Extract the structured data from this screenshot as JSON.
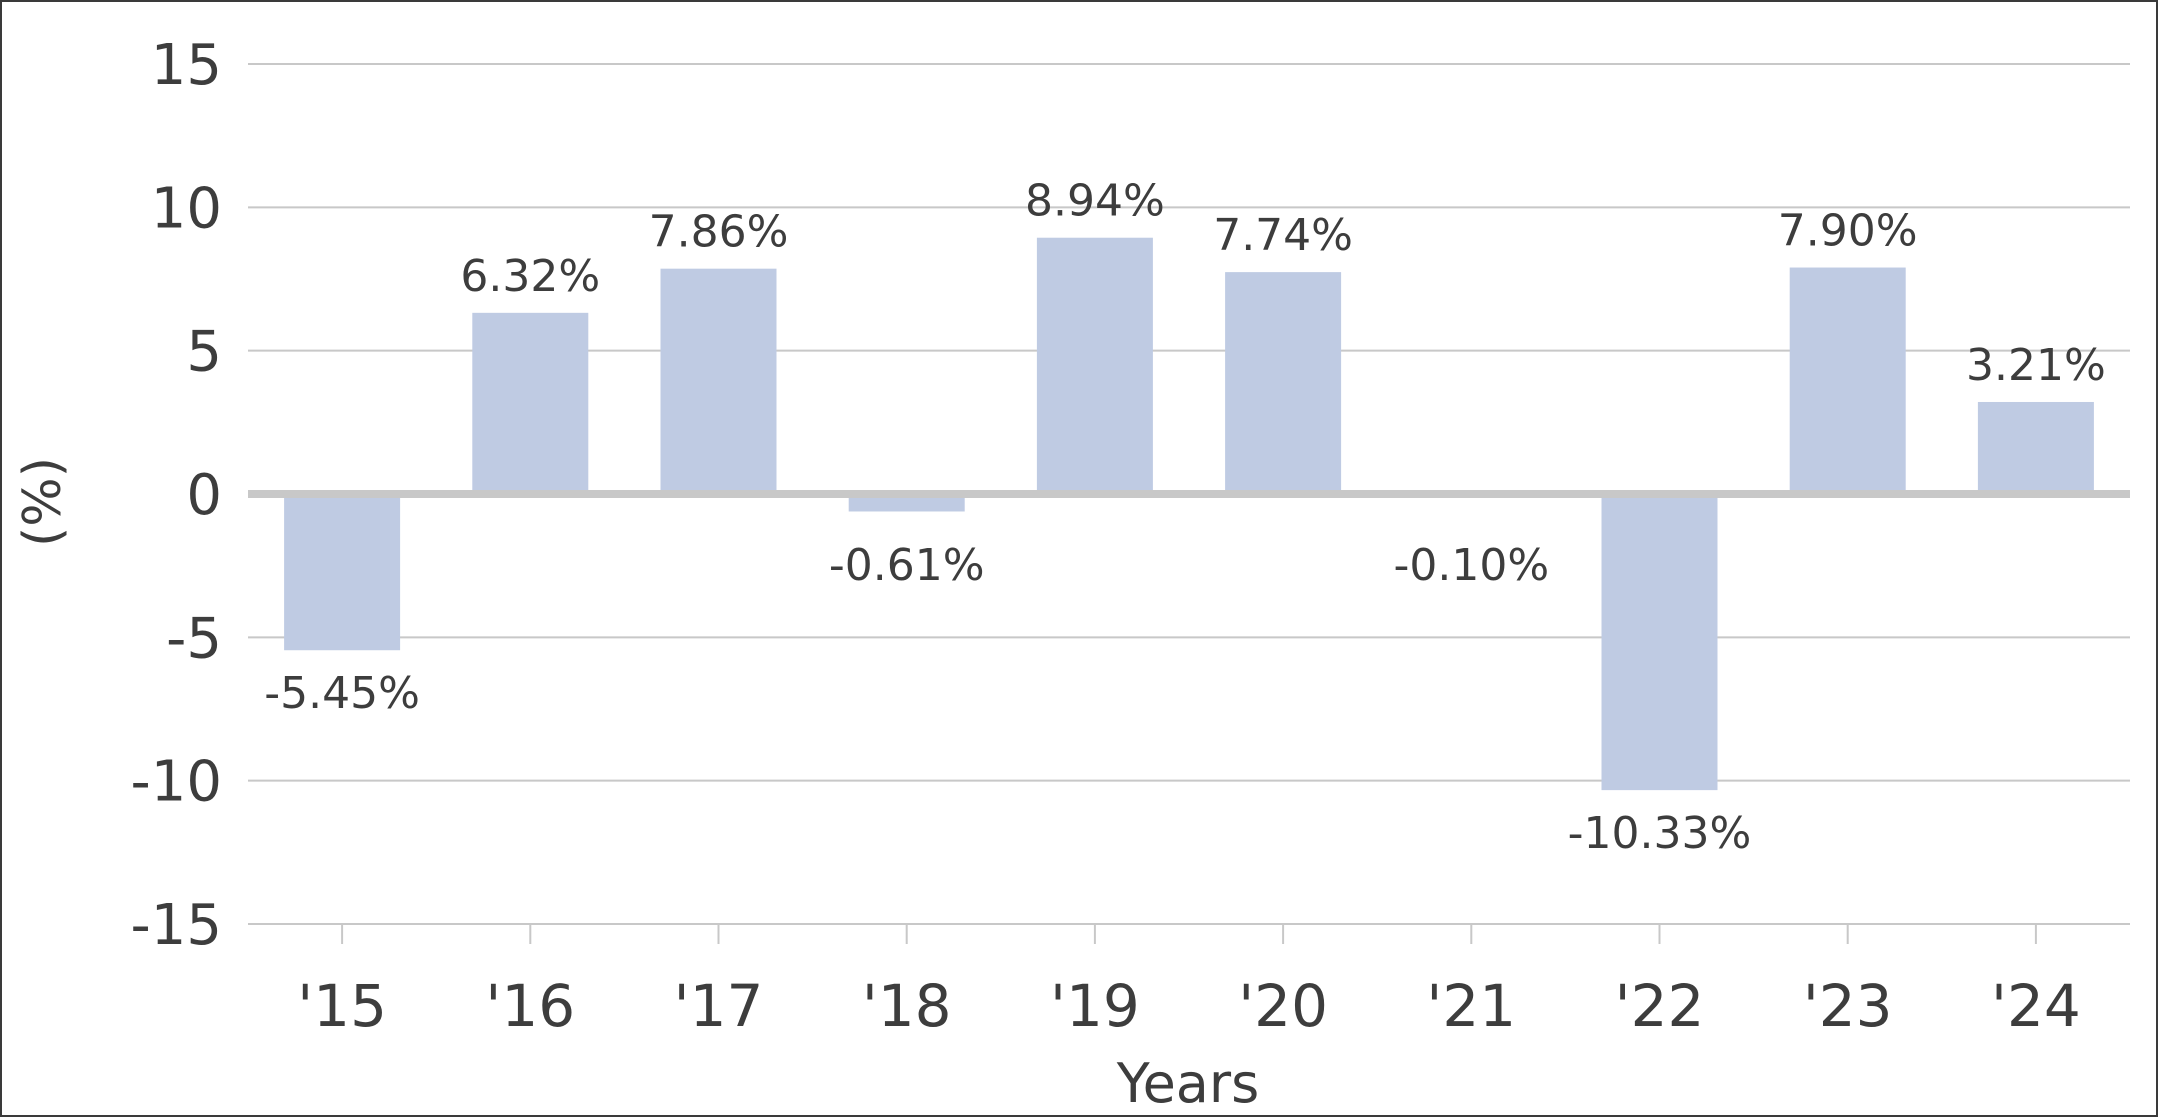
{
  "chart_data": {
    "type": "bar",
    "categories": [
      "'15",
      "'16",
      "'17",
      "'18",
      "'19",
      "'20",
      "'21",
      "'22",
      "'23",
      "'24"
    ],
    "values": [
      -5.45,
      6.32,
      7.86,
      -0.61,
      8.94,
      7.74,
      -0.1,
      -10.33,
      7.9,
      3.21
    ],
    "value_labels": [
      "-5.45%",
      "6.32%",
      "7.86%",
      "-0.61%",
      "8.94%",
      "7.74%",
      "-0.10%",
      "-10.33%",
      "7.90%",
      "3.21%"
    ],
    "title": "",
    "xlabel": "Years",
    "ylabel": "(%)",
    "ylim": [
      -15,
      15
    ],
    "yticks": [
      15,
      10,
      5,
      0,
      -5,
      -10,
      -15
    ],
    "grid": true,
    "legend": "none",
    "colors": {
      "bar": "#bfcbe3",
      "grid": "#c8c8c8",
      "zero_line": "#c8c8c8",
      "text": "#3d3d3d",
      "frame": "#3a3a3a"
    }
  }
}
